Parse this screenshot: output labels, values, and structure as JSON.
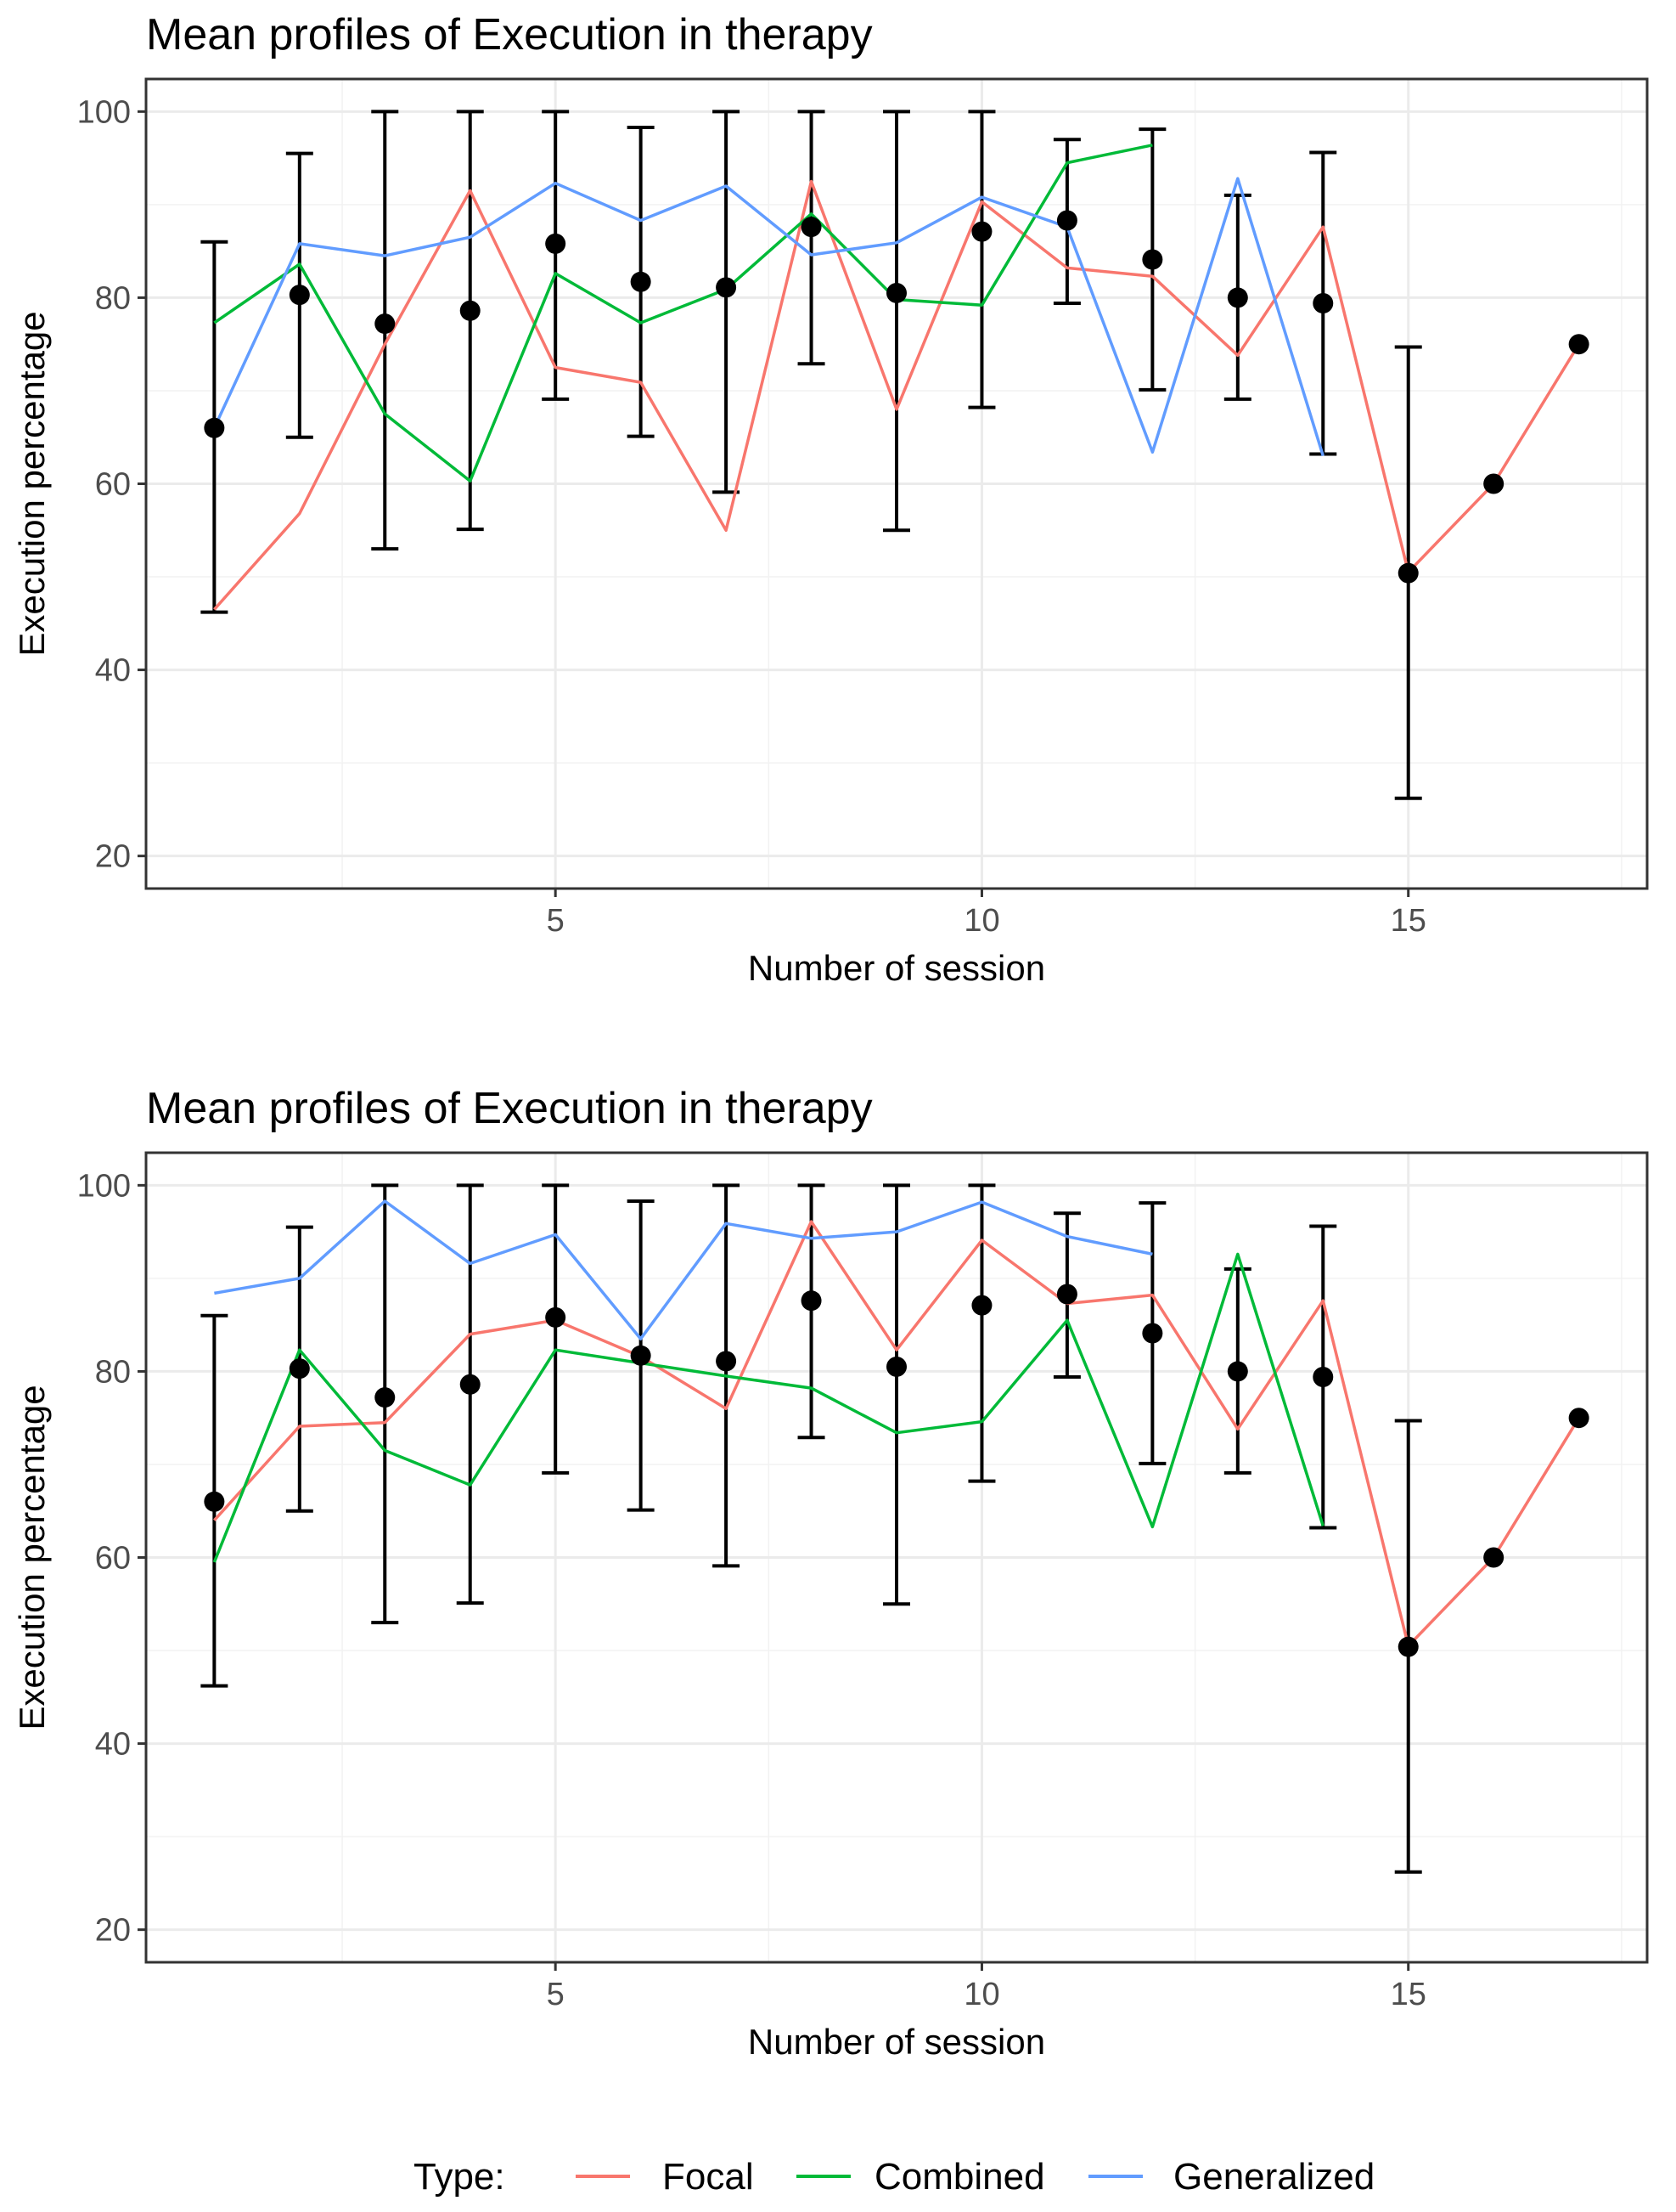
{
  "legend": {
    "title": "Type:",
    "items": [
      {
        "label": "Focal",
        "color": "#F8766D"
      },
      {
        "label": "Combined",
        "color": "#00BA38"
      },
      {
        "label": "Generalized",
        "color": "#619CFF"
      }
    ]
  },
  "chart_data": [
    {
      "type": "line",
      "title": "Mean profiles of Execution in therapy",
      "xlabel": "Number of session",
      "ylabel": "Execution percentage",
      "xlim": [
        0.2,
        17.8
      ],
      "ylim": [
        16.5,
        103.5
      ],
      "x_ticks": [
        5,
        10,
        15
      ],
      "y_ticks": [
        20,
        40,
        60,
        80,
        100
      ],
      "grid": true,
      "points": {
        "x": [
          1,
          2,
          3,
          4,
          5,
          6,
          7,
          8,
          9,
          10,
          11,
          12,
          13,
          14,
          15,
          16,
          17
        ],
        "mean": [
          66,
          80.3,
          77.2,
          78.6,
          85.8,
          81.7,
          81.1,
          87.6,
          80.5,
          87.1,
          88.3,
          84.1,
          80,
          79.4,
          50.4,
          60,
          75
        ],
        "lower": [
          46.2,
          65,
          53,
          55.1,
          69.1,
          65.1,
          59.1,
          72.9,
          55,
          68.2,
          79.4,
          70.1,
          69.1,
          63.2,
          26.2,
          null,
          null
        ],
        "upper": [
          86,
          95.5,
          100,
          100,
          100,
          98.3,
          100,
          100,
          100,
          100,
          97,
          98.1,
          91,
          95.6,
          74.7,
          null,
          null
        ]
      },
      "series": [
        {
          "name": "Focal",
          "color": "#F8766D",
          "x": [
            1,
            2,
            3,
            4,
            5,
            6,
            7,
            8,
            9,
            10,
            11,
            12,
            13,
            14,
            15,
            16,
            17
          ],
          "values": [
            46.5,
            56.8,
            75,
            91.5,
            72.5,
            70.9,
            55,
            92.5,
            68,
            90.3,
            83.2,
            82.3,
            73.8,
            87.6,
            50.5,
            60,
            75
          ]
        },
        {
          "name": "Combined",
          "color": "#00BA38",
          "x": [
            1,
            2,
            3,
            4,
            5,
            6,
            7,
            8,
            9,
            10,
            11,
            12
          ],
          "values": [
            77.3,
            83.6,
            67.5,
            60.3,
            82.6,
            77.3,
            80.9,
            89,
            79.8,
            79.2,
            94.5,
            96.4
          ]
        },
        {
          "name": "Generalized",
          "color": "#619CFF",
          "x": [
            1,
            2,
            3,
            4,
            5,
            6,
            7,
            8,
            9,
            10,
            11,
            12,
            13,
            14
          ],
          "values": [
            66,
            85.8,
            84.5,
            86.5,
            92.3,
            88.3,
            92,
            84.6,
            85.9,
            90.8,
            87.6,
            63.4,
            92.8,
            63
          ]
        }
      ]
    },
    {
      "type": "line",
      "title": "Mean profiles of Execution in therapy",
      "xlabel": "Number of session",
      "ylabel": "Execution percentage",
      "xlim": [
        0.2,
        17.8
      ],
      "ylim": [
        16.5,
        103.5
      ],
      "x_ticks": [
        5,
        10,
        15
      ],
      "y_ticks": [
        20,
        40,
        60,
        80,
        100
      ],
      "grid": true,
      "points": {
        "x": [
          1,
          2,
          3,
          4,
          5,
          6,
          7,
          8,
          9,
          10,
          11,
          12,
          13,
          14,
          15,
          16,
          17
        ],
        "mean": [
          66,
          80.3,
          77.2,
          78.6,
          85.8,
          81.7,
          81.1,
          87.6,
          80.5,
          87.1,
          88.3,
          84.1,
          80,
          79.4,
          50.4,
          60,
          75
        ],
        "lower": [
          46.2,
          65,
          53,
          55.1,
          69.1,
          65.1,
          59.1,
          72.9,
          55,
          68.2,
          79.4,
          70.1,
          69.1,
          63.2,
          26.2,
          null,
          null
        ],
        "upper": [
          86,
          95.5,
          100,
          100,
          100,
          98.3,
          100,
          100,
          100,
          100,
          97,
          98.1,
          91,
          95.6,
          74.7,
          null,
          null
        ]
      },
      "series": [
        {
          "name": "Focal",
          "color": "#F8766D",
          "x": [
            1,
            2,
            3,
            4,
            5,
            6,
            7,
            8,
            9,
            10,
            11,
            12,
            13,
            14,
            15,
            16,
            17
          ],
          "values": [
            64,
            74.1,
            74.5,
            84,
            85.5,
            81.6,
            76,
            96.1,
            82.3,
            94.1,
            87.3,
            88.2,
            73.8,
            87.6,
            50.5,
            60,
            75
          ]
        },
        {
          "name": "Combined",
          "color": "#00BA38",
          "x": [
            1,
            2,
            3,
            4,
            5,
            6,
            7,
            8,
            9,
            10,
            11,
            12,
            13,
            14
          ],
          "values": [
            59.5,
            82.3,
            71.5,
            67.8,
            82.3,
            80.9,
            79.5,
            78.2,
            73.4,
            74.6,
            85.5,
            63.3,
            92.6,
            63.4
          ]
        },
        {
          "name": "Generalized",
          "color": "#619CFF",
          "x": [
            1,
            2,
            3,
            4,
            5,
            6,
            7,
            8,
            9,
            10,
            11,
            12
          ],
          "values": [
            88.4,
            90,
            98.3,
            91.6,
            94.7,
            83.5,
            95.9,
            94.3,
            95,
            98.2,
            94.5,
            92.6
          ]
        }
      ]
    }
  ]
}
